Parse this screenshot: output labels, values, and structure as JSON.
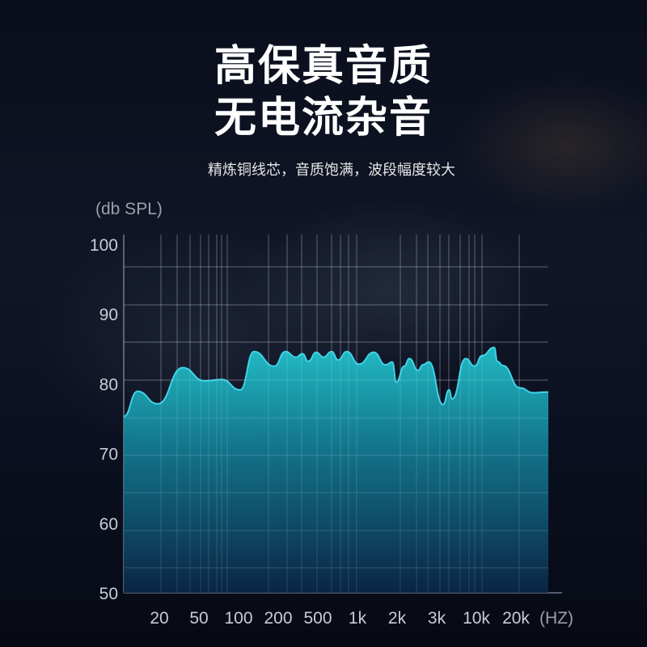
{
  "header": {
    "title_line1": "高保真音质",
    "title_line2": "无电流杂音",
    "subtitle": "精炼铜线芯，音质饱满，波段幅度较大"
  },
  "chart_data": {
    "type": "area",
    "ylabel": "(db SPL)",
    "xlabel": "(HZ)",
    "ylim": [
      50,
      100
    ],
    "y_ticks": [
      "100",
      "90",
      "80",
      "70",
      "60",
      "50"
    ],
    "categories": [
      "20",
      "50",
      "100",
      "200",
      "500",
      "1k",
      "2k",
      "3k",
      "10k",
      "20k"
    ],
    "grid": true,
    "colors": {
      "line": "#3fd3e6",
      "fill_top": "#1fb8c4",
      "fill_bottom": "#0b2a4a",
      "grid": "#8a93a6"
    },
    "series": [
      {
        "x": [
          -0.92,
          -0.55,
          -0.04,
          0.59,
          1.14,
          1.57,
          2.04,
          2.39,
          2.9,
          3.18,
          3.45,
          3.61,
          3.76,
          3.96,
          4.14,
          4.35,
          4.51,
          4.73,
          5.04,
          5.41,
          5.71,
          5.88,
          5.98,
          6.18,
          6.31,
          6.53,
          6.65,
          6.8,
          7.16,
          7.31,
          7.39,
          7.73,
          7.96,
          8.14,
          8.45,
          8.53,
          8.67,
          9.1,
          9.43,
          9.82
        ],
        "values": [
          75.3,
          78.9,
          77.1,
          82.3,
          80.4,
          80.6,
          79.1,
          84.6,
          82.5,
          84.6,
          83.8,
          84.3,
          83.2,
          84.5,
          83.8,
          84.6,
          83.4,
          84.6,
          82.8,
          84.5,
          82.7,
          83.1,
          80.2,
          82.5,
          83.6,
          81.9,
          82.7,
          83.1,
          77.0,
          79.1,
          77.8,
          83.6,
          82.5,
          84.0,
          85.2,
          83.2,
          82.6,
          79.4,
          78.7,
          78.8
        ]
      }
    ]
  }
}
